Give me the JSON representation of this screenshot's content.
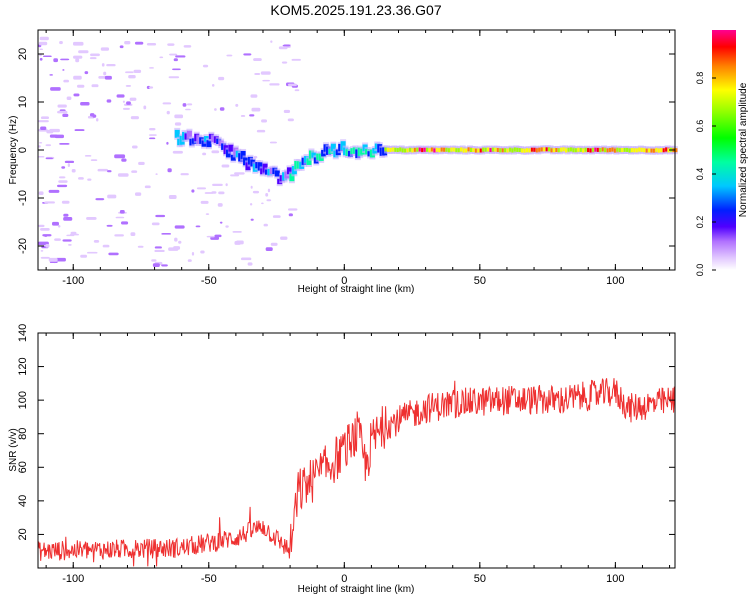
{
  "title": "KOM5.2025.191.23.36.G07",
  "chart_data": [
    {
      "type": "heatmap",
      "title": "KOM5.2025.191.23.36.G07",
      "xlabel": "Height of straight line (km)",
      "ylabel": "Frequency (Hz)",
      "xlim": [
        -113,
        122
      ],
      "ylim": [
        -25,
        25
      ],
      "x_ticks": [
        -100,
        -50,
        0,
        50,
        100
      ],
      "y_ticks": [
        -20,
        -10,
        0,
        10,
        20
      ],
      "grid": false,
      "colorbar": {
        "label": "Normalized spectral amplitude",
        "range": [
          0,
          1
        ],
        "ticks": [
          0.0,
          0.2,
          0.4,
          0.6,
          0.8
        ]
      },
      "ridge": {
        "description_points_x": [
          -60,
          -50,
          -40,
          -30,
          -22,
          -15,
          -10,
          -5,
          0,
          5,
          10,
          20,
          40,
          60,
          80,
          100,
          110,
          122
        ],
        "description_points_y": [
          2.5,
          2,
          -1,
          -4.5,
          -6,
          -2.5,
          -1,
          0,
          0,
          0,
          0,
          0,
          0,
          0,
          0,
          0,
          0,
          0
        ]
      }
    },
    {
      "type": "line",
      "xlabel": "Height of straight line (km)",
      "ylabel": "SNR (v/v)",
      "xlim": [
        -113,
        122
      ],
      "ylim": [
        0,
        140
      ],
      "x_ticks": [
        -100,
        -50,
        0,
        50,
        100
      ],
      "y_ticks": [
        20,
        40,
        60,
        80,
        100,
        120,
        140
      ],
      "grid": false,
      "series": [
        {
          "color": "#ee3030",
          "trend_x": [
            -113,
            -60,
            -40,
            -30,
            -20,
            -17,
            -10,
            -5,
            0,
            5,
            8,
            10,
            15,
            20,
            30,
            40,
            60,
            80,
            100,
            105,
            122
          ],
          "trend_y": [
            10,
            12,
            18,
            25,
            10,
            45,
            55,
            62,
            70,
            80,
            60,
            75,
            85,
            88,
            95,
            98,
            100,
            100,
            105,
            95,
            100
          ]
        }
      ]
    }
  ]
}
